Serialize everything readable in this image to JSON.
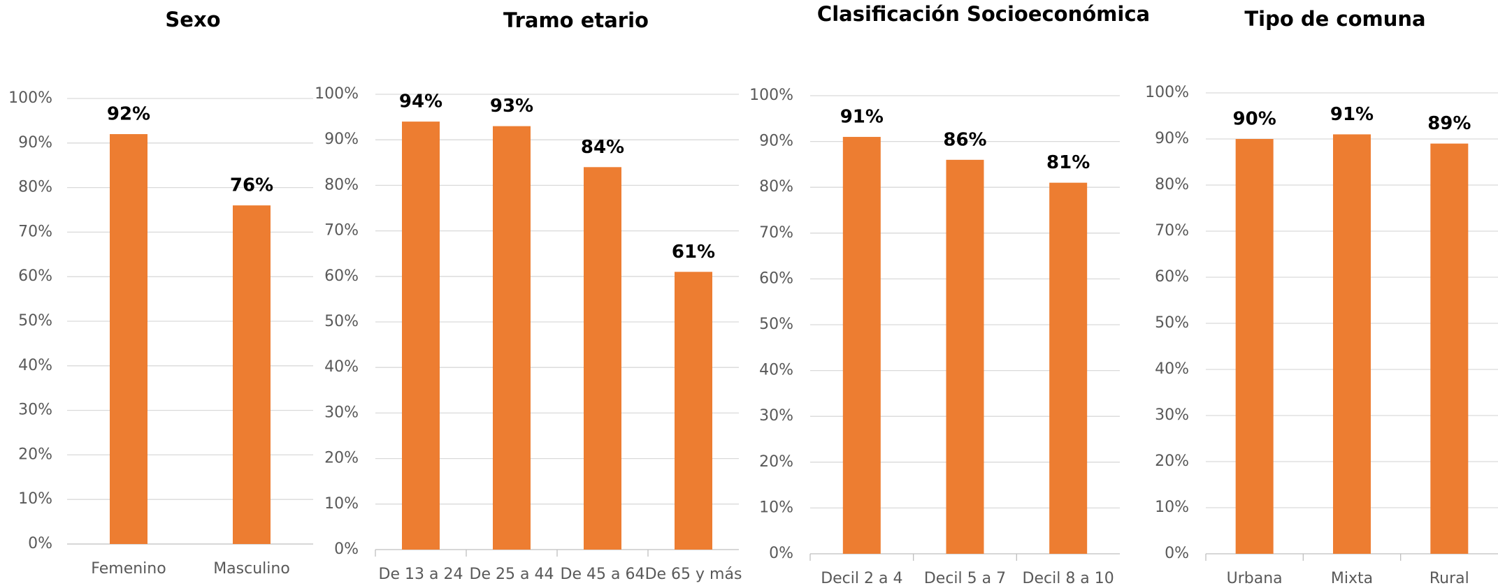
{
  "chart_data": [
    {
      "type": "bar",
      "title": "Sexo",
      "categories": [
        "Femenino",
        "Masculino"
      ],
      "values": [
        92,
        76
      ],
      "value_labels": [
        "92%",
        "76%"
      ],
      "color": "#ed7d31",
      "ylim": [
        0,
        100
      ],
      "yticks": [
        {
          "value": 0,
          "label": "0%"
        },
        {
          "value": 10,
          "label": "10%"
        },
        {
          "value": 20,
          "label": "20%"
        },
        {
          "value": 30,
          "label": "30%"
        },
        {
          "value": 40,
          "label": "40%"
        },
        {
          "value": 50,
          "label": "50%"
        },
        {
          "value": 60,
          "label": "60%"
        },
        {
          "value": 70,
          "label": "70%"
        },
        {
          "value": 80,
          "label": "80%"
        },
        {
          "value": 90,
          "label": "90%"
        },
        {
          "value": 100,
          "label": "100%"
        }
      ],
      "grid": true
    },
    {
      "type": "bar",
      "title": "Tramo etario",
      "categories": [
        "De 13 a 24",
        "De 25 a 44",
        "De 45 a 64",
        "De 65 y más"
      ],
      "values": [
        94,
        93,
        84,
        61
      ],
      "value_labels": [
        "94%",
        "93%",
        "84%",
        "61%"
      ],
      "color": "#ed7d31",
      "ylim": [
        0,
        100
      ],
      "yticks": [
        {
          "value": 0,
          "label": "0%"
        },
        {
          "value": 10,
          "label": "10%"
        },
        {
          "value": 20,
          "label": "20%"
        },
        {
          "value": 30,
          "label": "30%"
        },
        {
          "value": 40,
          "label": "40%"
        },
        {
          "value": 50,
          "label": "50%"
        },
        {
          "value": 60,
          "label": "60%"
        },
        {
          "value": 70,
          "label": "70%"
        },
        {
          "value": 80,
          "label": "80%"
        },
        {
          "value": 90,
          "label": "90%"
        },
        {
          "value": 100,
          "label": "100%"
        }
      ],
      "grid": true
    },
    {
      "type": "bar",
      "title": "Clasificación Socioeconómica",
      "categories": [
        "Decil 2 a 4",
        "Decil 5 a 7",
        "Decil 8 a 10"
      ],
      "values": [
        91,
        86,
        81
      ],
      "value_labels": [
        "91%",
        "86%",
        "81%"
      ],
      "color": "#ed7d31",
      "ylim": [
        0,
        100
      ],
      "yticks": [
        {
          "value": 0,
          "label": "0%"
        },
        {
          "value": 10,
          "label": "10%"
        },
        {
          "value": 20,
          "label": "20%"
        },
        {
          "value": 30,
          "label": "30%"
        },
        {
          "value": 40,
          "label": "40%"
        },
        {
          "value": 50,
          "label": "50%"
        },
        {
          "value": 60,
          "label": "60%"
        },
        {
          "value": 70,
          "label": "70%"
        },
        {
          "value": 80,
          "label": "80%"
        },
        {
          "value": 90,
          "label": "90%"
        },
        {
          "value": 100,
          "label": "100%"
        }
      ],
      "grid": true
    },
    {
      "type": "bar",
      "title": "Tipo de comuna",
      "categories": [
        "Urbana",
        "Mixta",
        "Rural"
      ],
      "values": [
        90,
        91,
        89
      ],
      "value_labels": [
        "90%",
        "91%",
        "89%"
      ],
      "color": "#ed7d31",
      "ylim": [
        0,
        100
      ],
      "yticks": [
        {
          "value": 0,
          "label": "0%"
        },
        {
          "value": 10,
          "label": "10%"
        },
        {
          "value": 20,
          "label": "20%"
        },
        {
          "value": 30,
          "label": "30%"
        },
        {
          "value": 40,
          "label": "40%"
        },
        {
          "value": 50,
          "label": "50%"
        },
        {
          "value": 60,
          "label": "60%"
        },
        {
          "value": 70,
          "label": "70%"
        },
        {
          "value": 80,
          "label": "80%"
        },
        {
          "value": 90,
          "label": "90%"
        },
        {
          "value": 100,
          "label": "100%"
        }
      ],
      "grid": true
    }
  ]
}
